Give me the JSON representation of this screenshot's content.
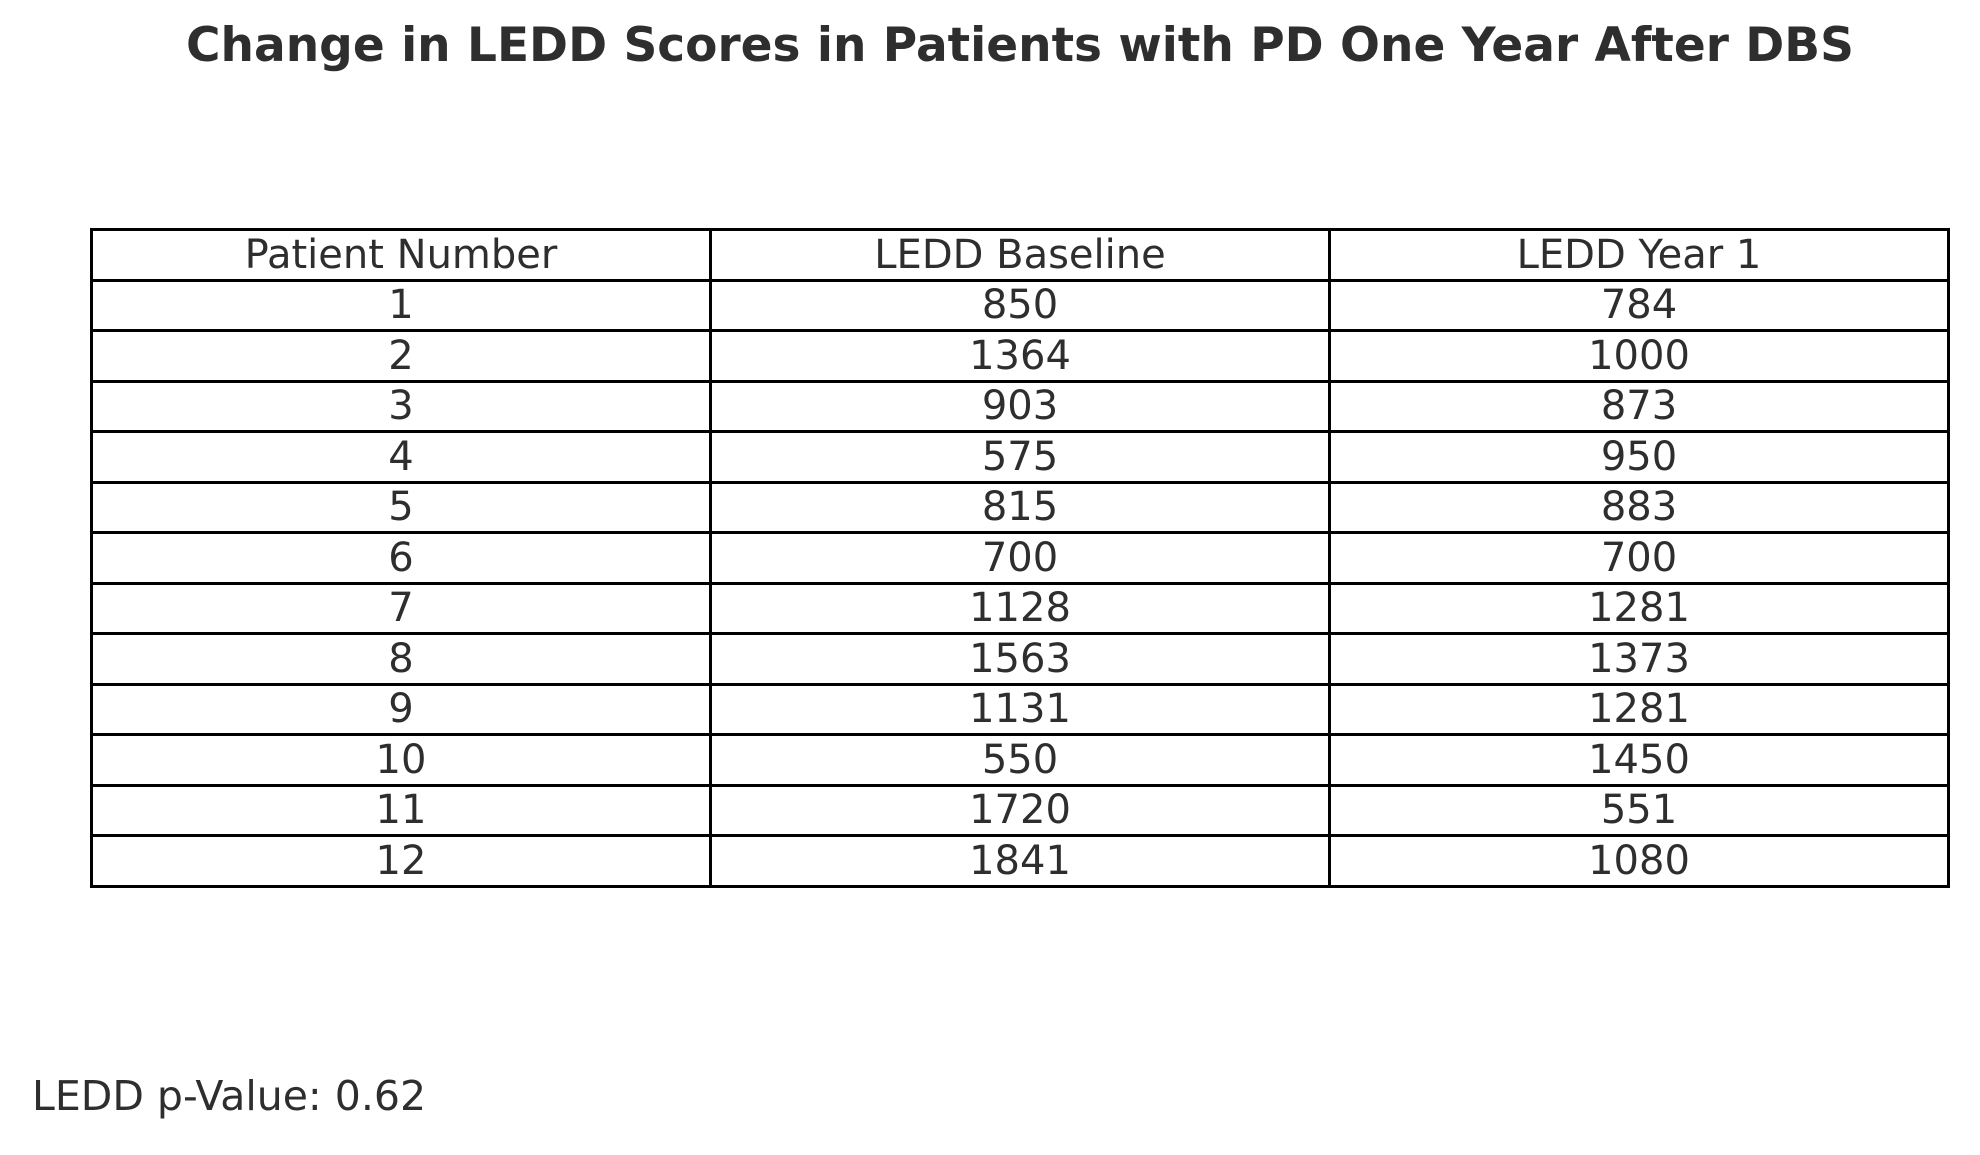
{
  "title": "Change in LEDD Scores in Patients with PD One Year After DBS",
  "footer": {
    "p_value_text": "LEDD p-Value: 0.62"
  },
  "colors": {
    "background": "#ffffff",
    "text": "#2e2e2e",
    "table_border": "#000000"
  },
  "chart_data": {
    "type": "table",
    "title": "Change in LEDD Scores in Patients with PD One Year After DBS",
    "columns": [
      "Patient Number",
      "LEDD Baseline",
      "LEDD Year 1"
    ],
    "rows": [
      [
        "1",
        "850",
        "784"
      ],
      [
        "2",
        "1364",
        "1000"
      ],
      [
        "3",
        "903",
        "873"
      ],
      [
        "4",
        "575",
        "950"
      ],
      [
        "5",
        "815",
        "883"
      ],
      [
        "6",
        "700",
        "700"
      ],
      [
        "7",
        "1128",
        "1281"
      ],
      [
        "8",
        "1563",
        "1373"
      ],
      [
        "9",
        "1131",
        "1281"
      ],
      [
        "10",
        "550",
        "1450"
      ],
      [
        "11",
        "1720",
        "551"
      ],
      [
        "12",
        "1841",
        "1080"
      ]
    ],
    "annotation": "LEDD p-Value: 0.62",
    "layout": {
      "grid": "full table borders",
      "text_alignment": "center",
      "annotation_position": "bottom-left"
    }
  }
}
